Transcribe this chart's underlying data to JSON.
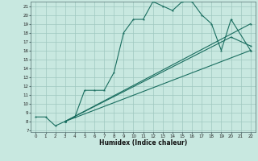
{
  "xlabel": "Humidex (Indice chaleur)",
  "bg_color": "#c8e8e0",
  "grid_color": "#9fc8c0",
  "line_color": "#1a6e60",
  "xlim": [
    -0.5,
    22.5
  ],
  "ylim": [
    6.8,
    21.5
  ],
  "xticks": [
    0,
    1,
    2,
    3,
    4,
    5,
    6,
    7,
    8,
    9,
    10,
    11,
    12,
    13,
    14,
    15,
    16,
    17,
    18,
    19,
    20,
    21,
    22
  ],
  "yticks": [
    7,
    8,
    9,
    10,
    11,
    12,
    13,
    14,
    15,
    16,
    17,
    18,
    19,
    20,
    21
  ],
  "line1_x": [
    0,
    1,
    2,
    3,
    4,
    5,
    6,
    7,
    8,
    9,
    10,
    11,
    12,
    13,
    14,
    15,
    16,
    17,
    18,
    19,
    20,
    22
  ],
  "line1_y": [
    8.5,
    8.5,
    7.5,
    8.0,
    8.5,
    11.5,
    11.5,
    11.5,
    13.5,
    18.0,
    19.5,
    19.5,
    21.5,
    21.0,
    20.5,
    21.5,
    21.5,
    20.0,
    19.0,
    16.0,
    19.5,
    16.0
  ],
  "line2_x": [
    3,
    22
  ],
  "line2_y": [
    8.0,
    16.0
  ],
  "line3_x": [
    3,
    20,
    22
  ],
  "line3_y": [
    8.0,
    17.5,
    16.5
  ],
  "line4_x": [
    3,
    22
  ],
  "line4_y": [
    8.0,
    19.0
  ]
}
